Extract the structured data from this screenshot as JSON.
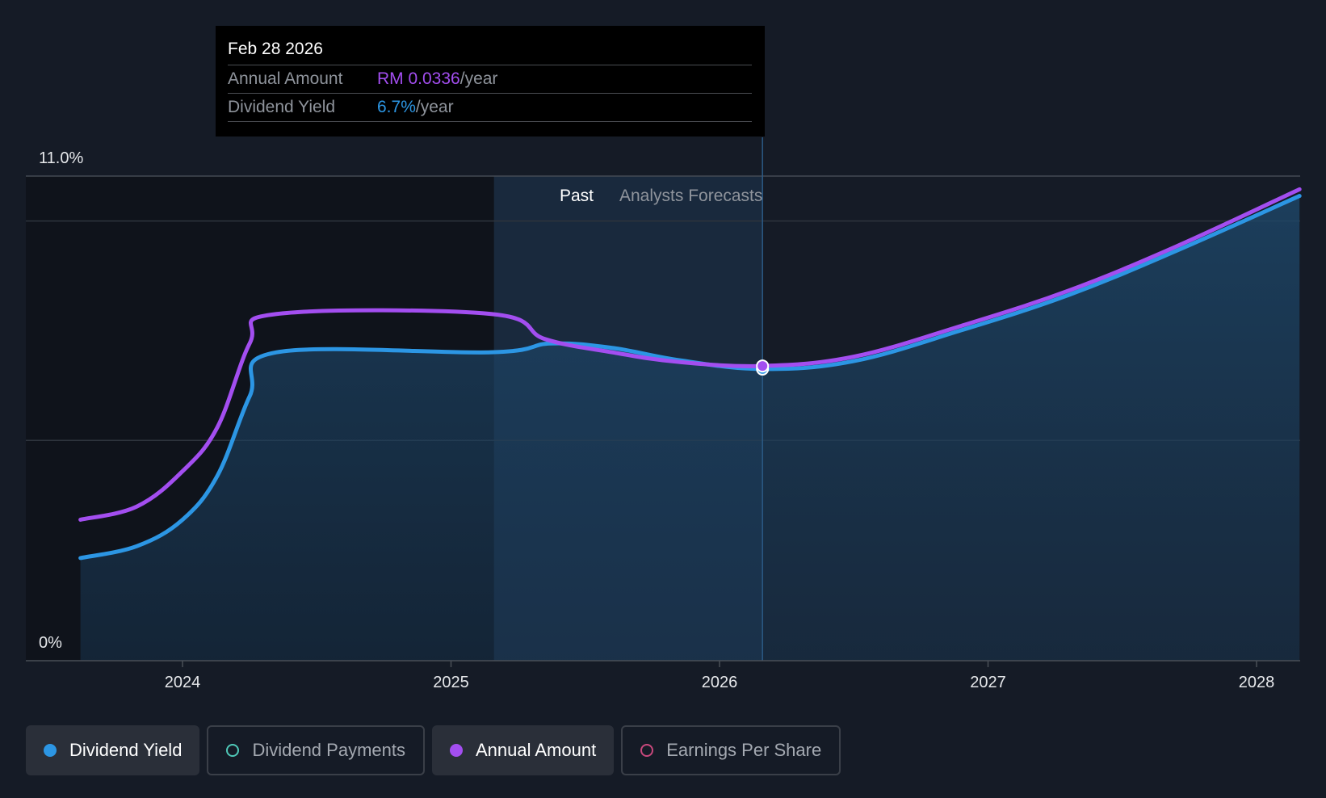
{
  "tooltip": {
    "date": "Feb 28 2026",
    "rows": [
      {
        "label": "Annual Amount",
        "value": "RM 0.0336",
        "unit": "/year",
        "color": "#a34ef0"
      },
      {
        "label": "Dividend Yield",
        "value": "6.7%",
        "unit": "/year",
        "color": "#2c96e4"
      }
    ]
  },
  "regions": {
    "past_label": "Past",
    "forecast_label": "Analysts Forecasts"
  },
  "legend": [
    {
      "label": "Dividend Yield",
      "color": "#2c96e4",
      "active": true,
      "filled": true
    },
    {
      "label": "Dividend Payments",
      "color": "#4fc9b8",
      "active": false,
      "filled": false
    },
    {
      "label": "Annual Amount",
      "color": "#a34ef0",
      "active": true,
      "filled": true
    },
    {
      "label": "Earnings Per Share",
      "color": "#c8487c",
      "active": false,
      "filled": false
    }
  ],
  "chart_data": {
    "type": "line",
    "ylim": [
      0,
      11
    ],
    "y_tick_labels": [
      "11.0%",
      "0%"
    ],
    "x_ticks": [
      2024,
      2025,
      2026,
      2027,
      2028
    ],
    "grid": true,
    "past_shade_from": 2025.16,
    "today": 2026.16,
    "forecast_from": 2026.16,
    "series": [
      {
        "name": "Dividend Yield",
        "color": "#2c96e4",
        "x": [
          2023.62,
          2023.83,
          2024.0,
          2024.13,
          2024.25,
          2024.35,
          2025.15,
          2025.37,
          2025.6,
          2025.85,
          2026.16,
          2026.5,
          2026.9,
          2027.3,
          2027.7,
          2028.16
        ],
        "y": [
          2.33,
          2.6,
          3.2,
          4.2,
          6.0,
          7.0,
          7.0,
          7.2,
          7.1,
          6.82,
          6.62,
          6.8,
          7.5,
          8.3,
          9.3,
          10.55
        ]
      },
      {
        "name": "Annual Amount",
        "color": "#a34ef0",
        "x": [
          2023.62,
          2023.83,
          2024.0,
          2024.13,
          2024.25,
          2024.35,
          2025.15,
          2025.35,
          2025.6,
          2025.85,
          2026.16,
          2026.5,
          2026.9,
          2027.3,
          2027.7,
          2028.16
        ],
        "y": [
          3.2,
          3.5,
          4.3,
          5.3,
          7.2,
          7.87,
          7.87,
          7.3,
          7.0,
          6.78,
          6.69,
          6.9,
          7.6,
          8.4,
          9.4,
          10.7
        ]
      }
    ]
  }
}
